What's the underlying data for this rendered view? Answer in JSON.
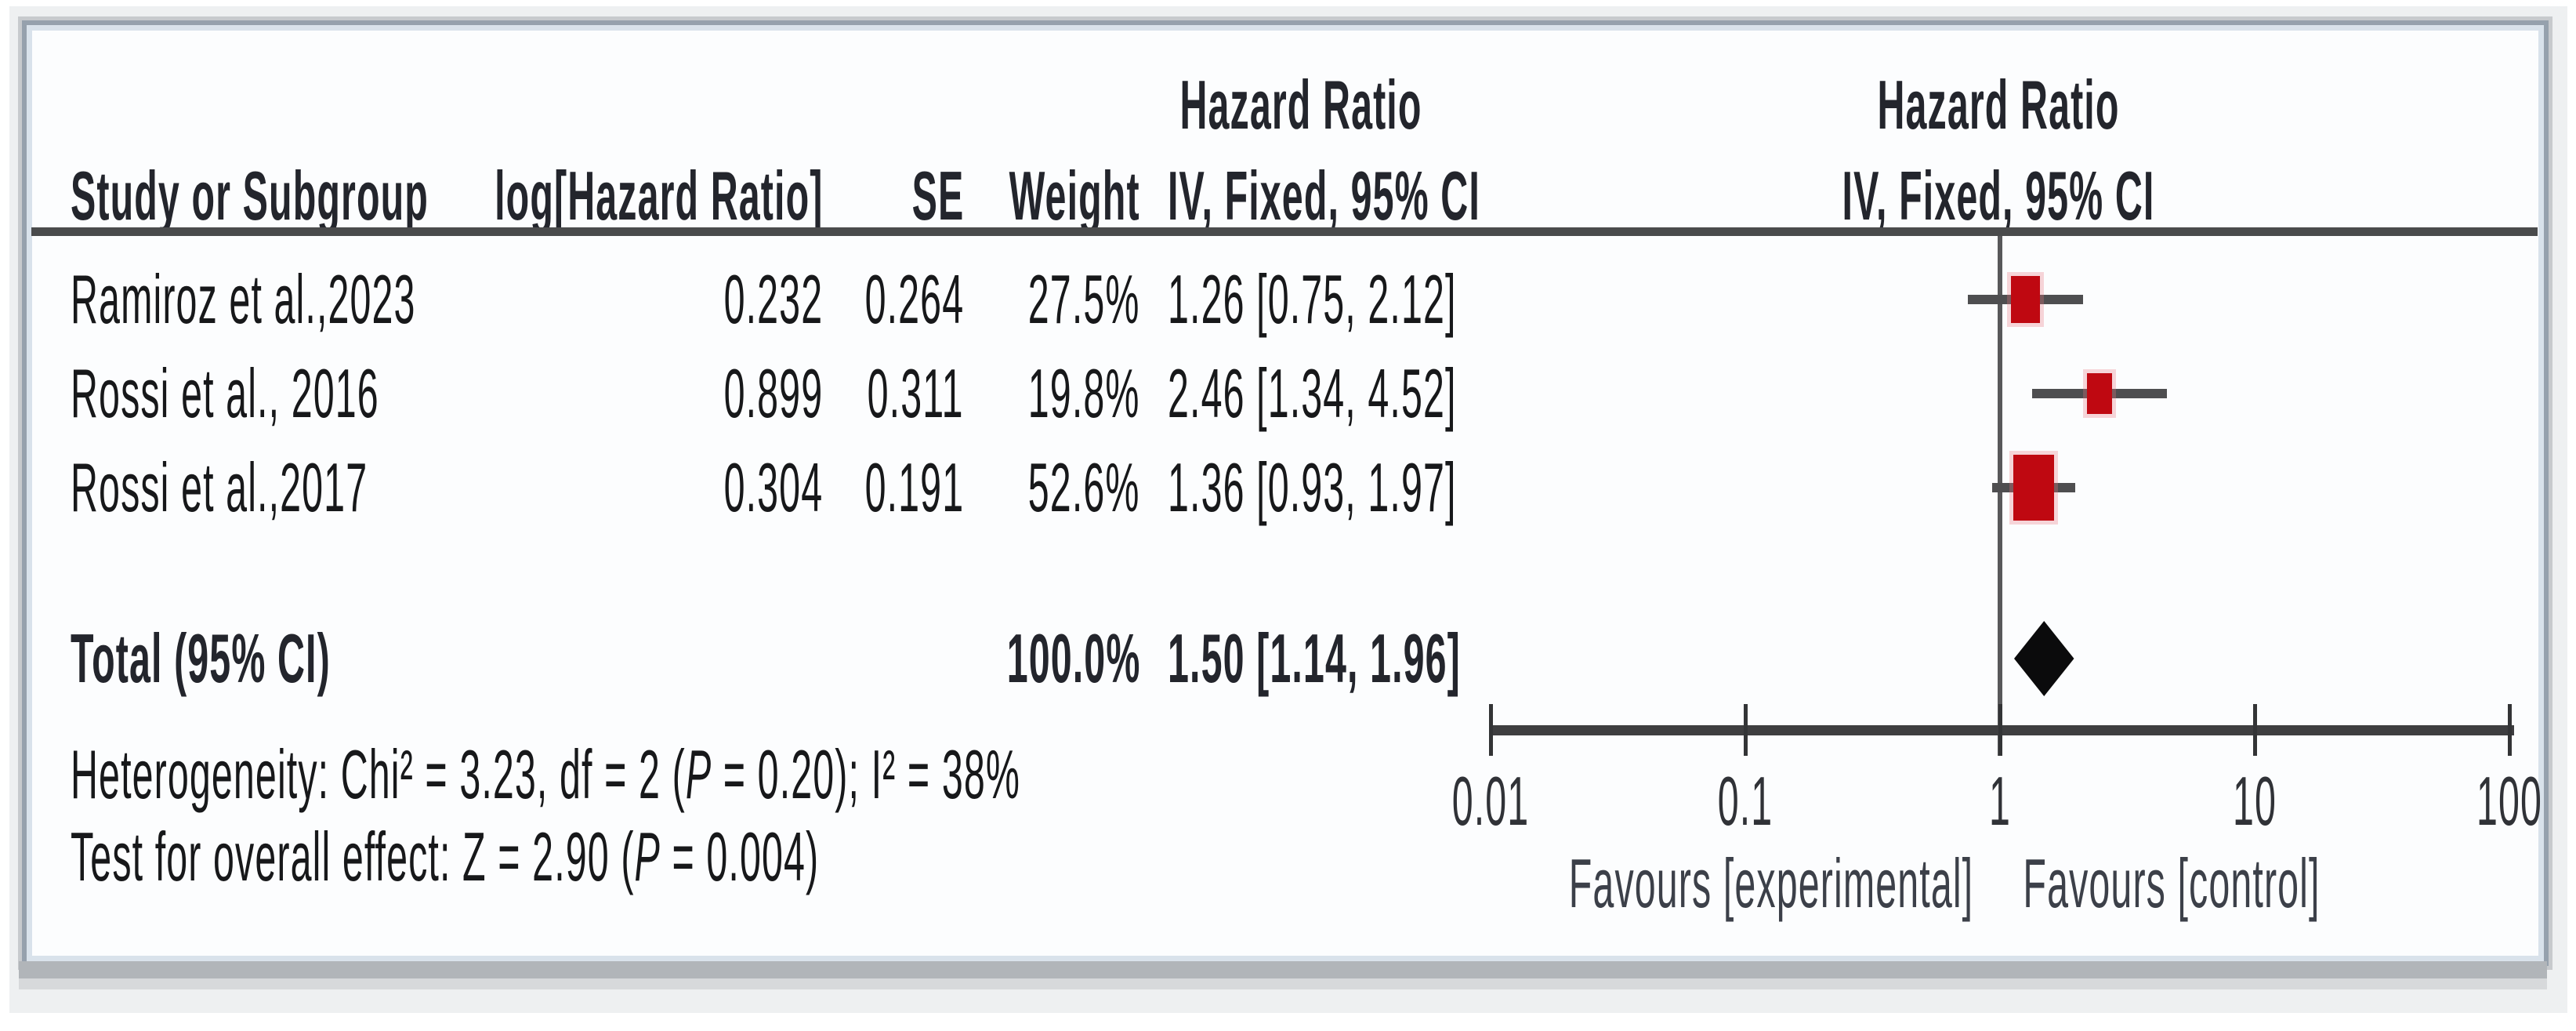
{
  "colors": {
    "marker_red": "#bf0811",
    "ci_line": "#4e4e50",
    "diamond_black": "#0b0b0c",
    "header_rule": "#4a4b4c",
    "panel_background": "#fcfdfe",
    "window_background": "#eef0f1",
    "frame_border": "#96a1ad"
  },
  "table": {
    "headers": {
      "study": "Study or Subgroup",
      "log_hr": "log[Hazard Ratio]",
      "se": "SE",
      "weight": "Weight",
      "effect_line1": "Hazard Ratio",
      "effect_line2": "IV, Fixed, 95% CI"
    },
    "plot_headers": {
      "line1": "Hazard Ratio",
      "line2": "IV, Fixed, 95% CI"
    }
  },
  "chart_data": {
    "type": "forest",
    "effect_measure": "Hazard Ratio",
    "model": "IV, Fixed, 95% CI",
    "x_scale": "log",
    "xlim": [
      0.01,
      100
    ],
    "studies": [
      {
        "name": "Ramiroz et al.,2023",
        "log_hr": "0.232",
        "se": "0.264",
        "weight_pct": 27.5,
        "weight_label": "27.5%",
        "hr": 1.26,
        "ci_low": 0.75,
        "ci_high": 2.12,
        "ci_text": "1.26 [0.75, 2.12]"
      },
      {
        "name": "Rossi et al., 2016",
        "log_hr": "0.899",
        "se": "0.311",
        "weight_pct": 19.8,
        "weight_label": "19.8%",
        "hr": 2.46,
        "ci_low": 1.34,
        "ci_high": 4.52,
        "ci_text": "2.46 [1.34, 4.52]"
      },
      {
        "name": "Rossi et al.,2017",
        "log_hr": "0.304",
        "se": "0.191",
        "weight_pct": 52.6,
        "weight_label": "52.6%",
        "hr": 1.36,
        "ci_low": 0.93,
        "ci_high": 1.97,
        "ci_text": "1.36 [0.93, 1.97]"
      }
    ],
    "total": {
      "label": "Total (95% CI)",
      "weight_label": "100.0%",
      "hr": 1.5,
      "ci_low": 1.14,
      "ci_high": 1.96,
      "ci_text": "1.50 [1.14, 1.96]"
    },
    "heterogeneity": "Heterogeneity: Chi² = 3.23, df = 2 (P = 0.20); I² = 38%",
    "overall_effect": "Test for overall effect: Z = 2.90 (P = 0.004)",
    "axis": {
      "ticks": [
        0.01,
        0.1,
        1,
        10,
        100
      ],
      "tick_labels": [
        "0.01",
        "0.1",
        "1",
        "10",
        "100"
      ]
    },
    "footer_labels": {
      "left": "Favours [experimental]",
      "right": "Favours [control]"
    }
  }
}
